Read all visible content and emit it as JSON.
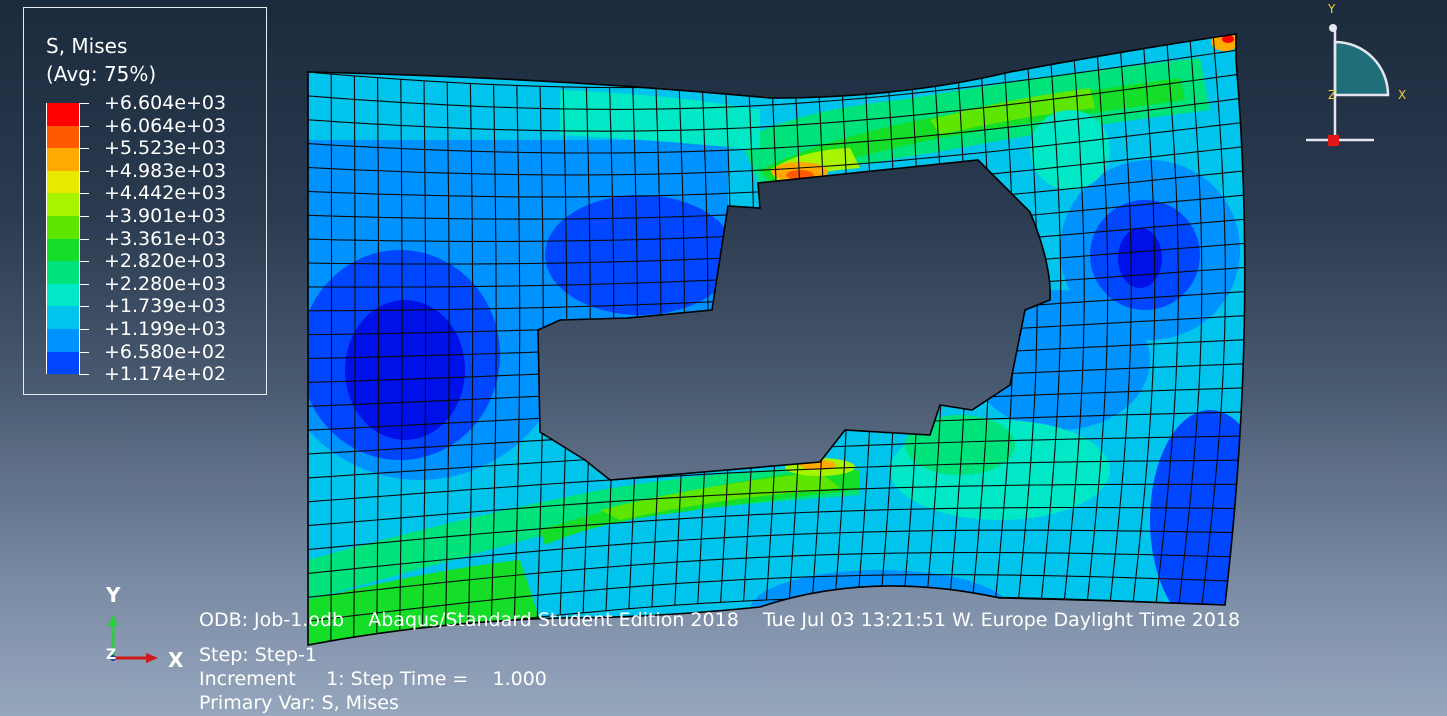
{
  "legend": {
    "title_line1": "S, Mises",
    "title_line2": "(Avg: 75%)",
    "entries": [
      {
        "label": "+6.604e+03",
        "color": "#ff0000"
      },
      {
        "label": "+6.064e+03",
        "color": "#ff5a00"
      },
      {
        "label": "+5.523e+03",
        "color": "#ffaa00"
      },
      {
        "label": "+4.983e+03",
        "color": "#e8e800"
      },
      {
        "label": "+4.442e+03",
        "color": "#a6f400"
      },
      {
        "label": "+3.901e+03",
        "color": "#5ce600"
      },
      {
        "label": "+3.361e+03",
        "color": "#14de28"
      },
      {
        "label": "+2.820e+03",
        "color": "#00e27a"
      },
      {
        "label": "+2.280e+03",
        "color": "#00e8c6"
      },
      {
        "label": "+1.739e+03",
        "color": "#00c4ec"
      },
      {
        "label": "+1.199e+03",
        "color": "#0092ff"
      },
      {
        "label": "+6.580e+02",
        "color": "#0046ff"
      },
      {
        "label": "+1.174e+02",
        "color": "#0010e8"
      }
    ]
  },
  "info": {
    "odb_line": "ODB: Job-1.odb    Abaqus/Standard Student Edition 2018    Tue Jul 03 13:21:51 W. Europe Daylight Time 2018",
    "step_line": "Step: Step-1",
    "increment_line": "Increment     1: Step Time =    1.000",
    "primary_var_line": "Primary Var: S, Mises"
  },
  "triad": {
    "y_label": "Y",
    "x_label": "X",
    "z_label": "Z"
  },
  "view_triad": {
    "y_label": "Y",
    "x_label": "X",
    "z_label": "Z"
  }
}
